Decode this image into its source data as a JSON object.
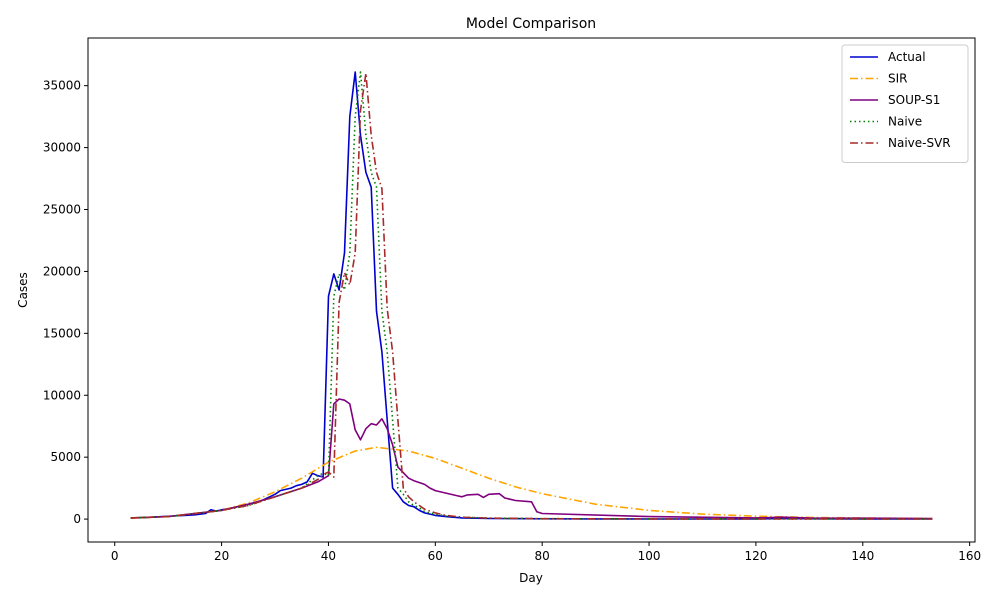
{
  "chart_data": {
    "type": "line",
    "title": "Model Comparison",
    "xlabel": "Day",
    "ylabel": "Cases",
    "xlim": [
      -5,
      161
    ],
    "ylim": [
      -1850,
      38850
    ],
    "xticks": [
      0,
      20,
      40,
      60,
      80,
      100,
      120,
      140,
      160
    ],
    "yticks": [
      0,
      5000,
      10000,
      15000,
      20000,
      25000,
      30000,
      35000
    ],
    "grid": false,
    "legend_position": "top-right",
    "series": [
      {
        "name": "Actual",
        "color": "#0000cd",
        "style": "solid",
        "x": [
          3,
          5,
          7,
          9,
          11,
          13,
          15,
          17,
          18,
          19,
          20,
          22,
          24,
          26,
          27,
          28,
          29,
          30,
          31,
          32,
          33,
          34,
          35,
          36,
          37,
          38,
          39,
          40,
          41,
          42,
          43,
          44,
          45,
          46,
          47,
          48,
          49,
          50,
          51,
          52,
          53,
          54,
          55,
          56,
          57,
          58,
          59,
          60,
          62,
          65,
          70,
          80,
          90,
          100,
          110,
          120,
          125,
          130,
          140,
          153
        ],
        "y": [
          100,
          110,
          150,
          200,
          250,
          300,
          350,
          450,
          750,
          650,
          750,
          900,
          1100,
          1300,
          1400,
          1600,
          1800,
          2000,
          2300,
          2400,
          2500,
          2700,
          2800,
          3000,
          3700,
          3500,
          3400,
          18000,
          19800,
          18500,
          21500,
          32500,
          36100,
          31000,
          28000,
          26800,
          16800,
          13500,
          8000,
          2500,
          2000,
          1400,
          1100,
          1000,
          700,
          500,
          400,
          300,
          200,
          100,
          50,
          20,
          15,
          10,
          10,
          10,
          50,
          30,
          10,
          10
        ]
      },
      {
        "name": "SIR",
        "color": "#ffa500",
        "style": "dashdot",
        "x": [
          3,
          10,
          20,
          25,
          30,
          35,
          40,
          45,
          49,
          55,
          60,
          65,
          70,
          75,
          80,
          90,
          100,
          110,
          120,
          130,
          140,
          153
        ],
        "y": [
          70,
          200,
          700,
          1300,
          2200,
          3300,
          4600,
          5500,
          5800,
          5500,
          4900,
          4100,
          3300,
          2600,
          2050,
          1200,
          700,
          400,
          230,
          140,
          90,
          50
        ]
      },
      {
        "name": "SOUP-S1",
        "color": "#800080",
        "style": "solid",
        "x": [
          3,
          10,
          20,
          25,
          30,
          35,
          38,
          40,
          41,
          42,
          43,
          44,
          45,
          46,
          47,
          48,
          49,
          50,
          51,
          52,
          53,
          55,
          56,
          58,
          59,
          60,
          62,
          64,
          65,
          66,
          68,
          69,
          70,
          72,
          73,
          75,
          78,
          79,
          80,
          100,
          120,
          125,
          130,
          140,
          153
        ],
        "y": [
          100,
          200,
          700,
          1200,
          1800,
          2500,
          3000,
          3500,
          9300,
          9700,
          9600,
          9300,
          7200,
          6400,
          7300,
          7700,
          7600,
          8100,
          7300,
          6000,
          4200,
          3300,
          3100,
          2800,
          2500,
          2300,
          2100,
          1900,
          1800,
          1950,
          2000,
          1750,
          2000,
          2050,
          1700,
          1500,
          1400,
          600,
          450,
          200,
          100,
          150,
          80,
          70,
          50
        ]
      },
      {
        "name": "Naive",
        "color": "#008000",
        "style": "dotted",
        "x": [
          3,
          10,
          20,
          25,
          30,
          35,
          38,
          39,
          40,
          41,
          42,
          43,
          44,
          45,
          46,
          47,
          48,
          49,
          50,
          51,
          52,
          53,
          54,
          55,
          56,
          57,
          58,
          60,
          62,
          65,
          70,
          80,
          100,
          120,
          153
        ],
        "y": [
          100,
          200,
          700,
          1100,
          1800,
          2500,
          3500,
          3700,
          3500,
          18000,
          19800,
          18500,
          21500,
          32500,
          36100,
          31000,
          28000,
          26800,
          16800,
          13500,
          8000,
          2500,
          2000,
          1400,
          1100,
          900,
          600,
          400,
          250,
          150,
          80,
          30,
          15,
          10,
          10
        ]
      },
      {
        "name": "Naive-SVR",
        "color": "#a52a2a",
        "style": "dashdot",
        "x": [
          3,
          10,
          20,
          25,
          30,
          35,
          38,
          39,
          40,
          41,
          42,
          43,
          44,
          45,
          46,
          47,
          48,
          49,
          50,
          51,
          52,
          53,
          54,
          55,
          56,
          57,
          58,
          60,
          62,
          65,
          70,
          80,
          100,
          120,
          153
        ],
        "y": [
          100,
          200,
          700,
          1100,
          1800,
          2500,
          3200,
          3600,
          3800,
          3400,
          17500,
          19900,
          18900,
          21500,
          33000,
          36000,
          31000,
          28000,
          26700,
          17000,
          13500,
          8000,
          2500,
          1800,
          1400,
          1100,
          800,
          500,
          300,
          150,
          80,
          30,
          15,
          10,
          10
        ]
      }
    ]
  }
}
